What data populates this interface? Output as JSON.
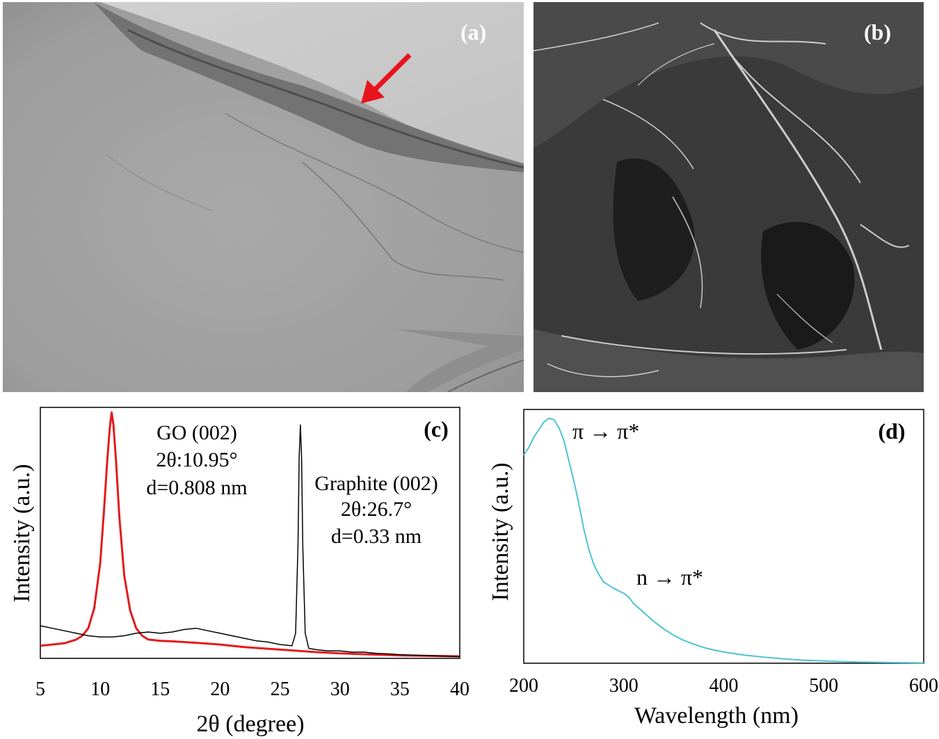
{
  "panels": {
    "a": {
      "label": "(a)",
      "arrow_color": "#e8141b"
    },
    "b": {
      "label": "(b)"
    }
  },
  "chart_data": [
    {
      "panel": "(c)",
      "type": "line",
      "xlabel": "2θ (degree)",
      "ylabel": "Intensity (a.u.)",
      "xlim": [
        5,
        40
      ],
      "xticks": [
        5,
        10,
        15,
        20,
        25,
        30,
        35,
        40
      ],
      "ylim": [
        0,
        1.0
      ],
      "grid": false,
      "series": [
        {
          "color": "#e31a1c",
          "x": [
            5,
            6,
            7,
            8,
            8.5,
            9,
            9.5,
            10,
            10.3,
            10.6,
            10.8,
            10.95,
            11.1,
            11.3,
            11.6,
            12,
            12.5,
            13,
            13.5,
            14,
            15,
            16,
            18,
            20,
            22,
            25,
            28,
            30,
            35,
            40
          ],
          "y": [
            0.05,
            0.055,
            0.06,
            0.075,
            0.09,
            0.12,
            0.2,
            0.38,
            0.58,
            0.8,
            0.92,
            0.98,
            0.93,
            0.8,
            0.56,
            0.33,
            0.19,
            0.12,
            0.09,
            0.075,
            0.07,
            0.068,
            0.062,
            0.055,
            0.045,
            0.035,
            0.025,
            0.02,
            0.012,
            0.008
          ]
        },
        {
          "color": "#000000",
          "x": [
            5,
            6,
            7,
            8,
            9,
            10,
            11,
            12,
            13,
            14,
            15,
            16,
            17,
            18,
            19,
            20,
            21,
            22,
            23,
            24,
            25,
            26,
            26.3,
            26.5,
            26.6,
            26.7,
            26.8,
            26.9,
            27.1,
            27.4,
            28,
            29,
            30,
            31,
            32,
            33,
            34,
            35,
            36,
            37,
            38,
            39,
            40
          ],
          "y": [
            0.13,
            0.12,
            0.11,
            0.1,
            0.09,
            0.085,
            0.085,
            0.09,
            0.1,
            0.105,
            0.1,
            0.105,
            0.115,
            0.12,
            0.11,
            0.1,
            0.09,
            0.08,
            0.07,
            0.065,
            0.055,
            0.05,
            0.1,
            0.45,
            0.8,
            0.93,
            0.8,
            0.45,
            0.1,
            0.04,
            0.035,
            0.03,
            0.03,
            0.025,
            0.025,
            0.02,
            0.018,
            0.015,
            0.013,
            0.012,
            0.01,
            0.008,
            0.007
          ]
        }
      ],
      "annotations": {
        "go_title": "GO (002)",
        "go_angle": "2θ:10.95°",
        "go_d": "d=0.808 nm",
        "graphite_title": "Graphite (002)",
        "graphite_angle": "2θ:26.7°",
        "graphite_d": "d=0.33 nm",
        "panel_label": "(c)"
      }
    },
    {
      "panel": "(d)",
      "type": "line",
      "xlabel": "Wavelength (nm)",
      "ylabel": "Intensity (a.u.)",
      "xlim": [
        200,
        600
      ],
      "xticks": [
        200,
        300,
        400,
        500,
        600
      ],
      "ylim": [
        0,
        1.0
      ],
      "grid": false,
      "series": [
        {
          "color": "#4fc1d6",
          "x": [
            200,
            205,
            210,
            215,
            220,
            225,
            230,
            235,
            240,
            245,
            250,
            255,
            260,
            265,
            270,
            275,
            280,
            290,
            300,
            305,
            310,
            320,
            330,
            340,
            350,
            360,
            370,
            380,
            390,
            400,
            420,
            440,
            460,
            480,
            500,
            520,
            540,
            560,
            580,
            600
          ],
          "y": [
            0.82,
            0.85,
            0.89,
            0.92,
            0.95,
            0.965,
            0.96,
            0.93,
            0.88,
            0.8,
            0.72,
            0.63,
            0.53,
            0.45,
            0.39,
            0.35,
            0.32,
            0.295,
            0.275,
            0.26,
            0.235,
            0.2,
            0.165,
            0.135,
            0.11,
            0.09,
            0.075,
            0.062,
            0.052,
            0.044,
            0.032,
            0.024,
            0.017,
            0.012,
            0.009,
            0.006,
            0.004,
            0.003,
            0.002,
            0.001
          ]
        }
      ],
      "annotations": {
        "pi_label": "π → π*",
        "n_label": "n → π*",
        "panel_label": "(d)"
      }
    }
  ]
}
